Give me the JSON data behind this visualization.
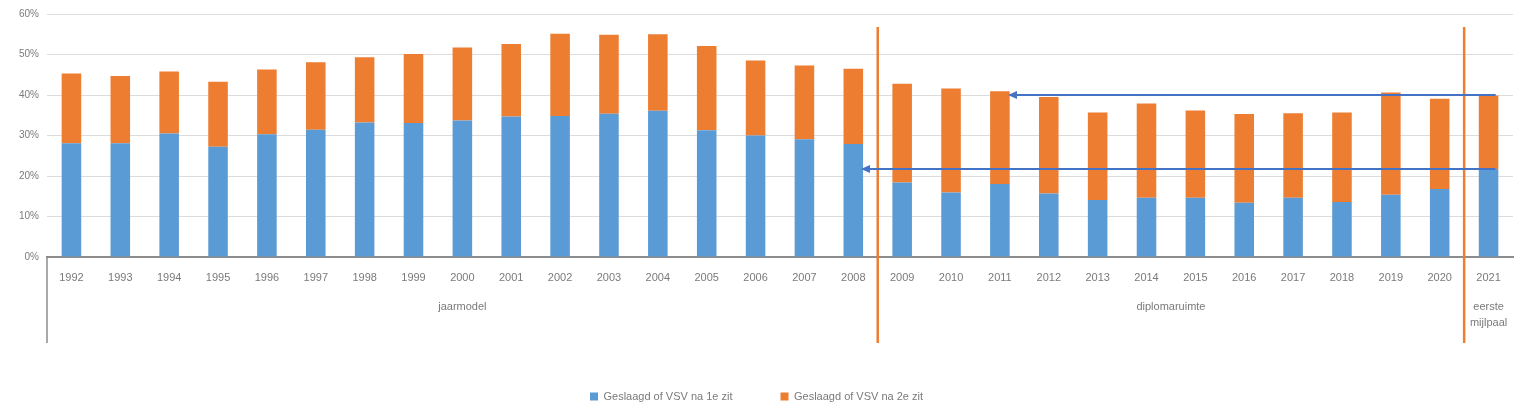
{
  "chart_data": {
    "type": "bar",
    "stacked": true,
    "x": [
      1992,
      1993,
      1994,
      1995,
      1996,
      1997,
      1998,
      1999,
      2000,
      2001,
      2002,
      2003,
      2004,
      2005,
      2006,
      2007,
      2008,
      2009,
      2010,
      2011,
      2012,
      2013,
      2014,
      2015,
      2016,
      2017,
      2018,
      2019,
      2020,
      2021
    ],
    "series": [
      {
        "name": "Geslaagd of VSV na 1e zit",
        "color": "#5b9bd5",
        "values": [
          28.1,
          28.1,
          30.5,
          27.2,
          30.3,
          31.4,
          33.2,
          33.1,
          33.7,
          34.7,
          34.8,
          35.4,
          36.1,
          31.3,
          30.0,
          29.1,
          27.9,
          18.4,
          15.9,
          18.0,
          15.7,
          14.1,
          14.6,
          14.6,
          13.4,
          14.6,
          13.6,
          15.4,
          16.8,
          21.7
        ]
      },
      {
        "name": "Geslaagd of VSV na 2e zit",
        "color": "#ed7d31",
        "values": [
          17.2,
          16.6,
          15.3,
          16.1,
          16.0,
          16.7,
          16.1,
          17.0,
          18.0,
          17.9,
          20.3,
          19.5,
          18.9,
          20.8,
          18.5,
          18.2,
          18.6,
          24.4,
          25.7,
          22.9,
          23.8,
          21.6,
          23.3,
          21.6,
          21.9,
          20.9,
          22.1,
          25.2,
          22.3,
          18.2
        ]
      }
    ],
    "xlim": [
      1991.5,
      2021.5
    ],
    "xticks": [
      1992,
      1993,
      1994,
      1995,
      1996,
      1997,
      1998,
      1999,
      2000,
      2001,
      2002,
      2003,
      2004,
      2005,
      2006,
      2007,
      2008,
      2009,
      2010,
      2011,
      2012,
      2013,
      2014,
      2015,
      2016,
      2017,
      2018,
      2019,
      2020,
      2021
    ],
    "ylim": [
      0,
      60
    ],
    "yticks": [
      {
        "value": 0,
        "label": "0%"
      },
      {
        "value": 10,
        "label": "10%"
      },
      {
        "value": 20,
        "label": "20%"
      },
      {
        "value": 30,
        "label": "30%"
      },
      {
        "value": 40,
        "label": "40%"
      },
      {
        "value": 50,
        "label": "50%"
      },
      {
        "value": 60,
        "label": "60%"
      }
    ],
    "ref_lines": [
      {
        "axis": "x",
        "value": 2008.5,
        "color": "#ed7d31"
      },
      {
        "axis": "x",
        "value": 2020.5,
        "color": "#ed7d31"
      }
    ],
    "annotations": [
      "jaarmodel",
      "diplomaruimte",
      "eerste mijlpaal"
    ],
    "grid": "y",
    "legend": "bottom"
  }
}
